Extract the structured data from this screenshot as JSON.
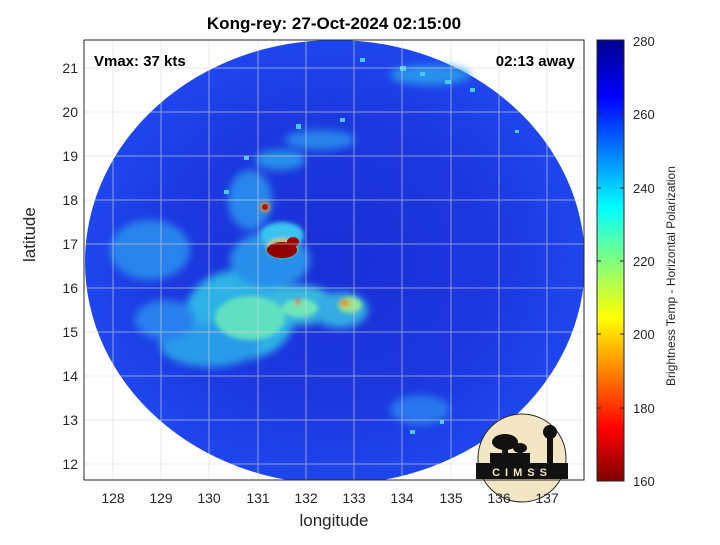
{
  "plot": {
    "title": "Kong-rey: 27-Oct-2024 02:15:00",
    "vmax": "Vmax: 37 kts",
    "time_away": "02:13 away",
    "xlabel": "longitude",
    "ylabel": "latitude"
  },
  "colorbar": {
    "label": "Brightness Temp - Horizontal Polarization",
    "ticks": [
      "280",
      "260",
      "240",
      "220",
      "200",
      "180",
      "160"
    ],
    "range": [
      160,
      280
    ]
  },
  "logo": {
    "text": "CIMSS"
  },
  "map_data": {
    "x_ticks": [
      128,
      129,
      130,
      131,
      132,
      133,
      134,
      135,
      136,
      137
    ],
    "y_ticks": [
      21,
      20,
      19,
      18,
      17,
      16,
      15,
      14,
      13,
      12
    ],
    "xlim": [
      127.5,
      137.8
    ],
    "ylim": [
      11.7,
      21.6
    ],
    "grid": true,
    "colormap": "jet"
  }
}
